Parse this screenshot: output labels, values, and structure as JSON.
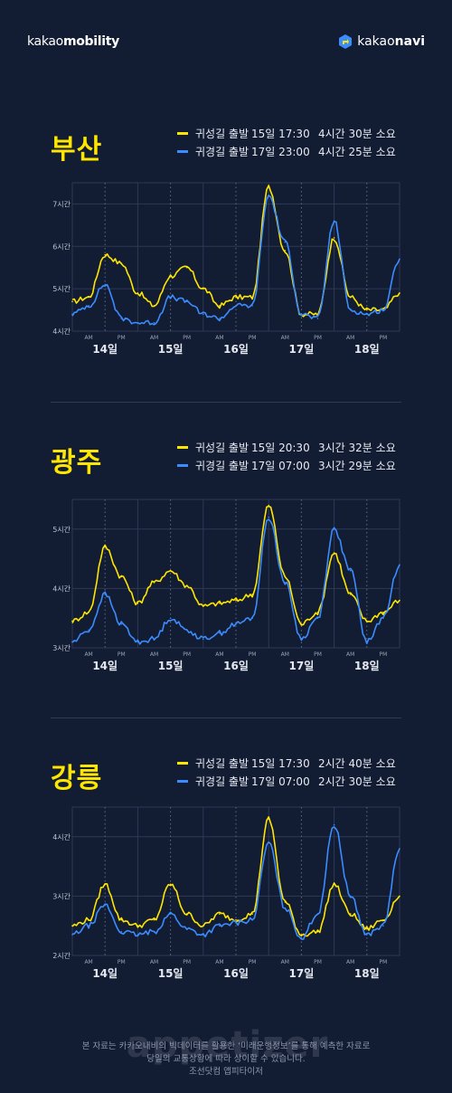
{
  "header": {
    "left_brand_light": "kakao",
    "left_brand_bold": "mobility",
    "right_brand_light": "kakao",
    "right_brand_bold": "navi"
  },
  "colors": {
    "background": "#121c33",
    "homecoming": "#ffe600",
    "return": "#3b8cff",
    "grid": "#2d3956"
  },
  "chart_data": [
    {
      "type": "line",
      "title": "부산",
      "categories_days": [
        "14일",
        "15일",
        "16일",
        "17일",
        "18일"
      ],
      "ampm_labels": [
        "AM",
        "PM"
      ],
      "y_ticks": [
        "4시간",
        "5시간",
        "6시간",
        "7시간"
      ],
      "ylim": [
        4,
        7.5
      ],
      "legend": [
        {
          "name": "귀성길 출발",
          "when": "15일  17:30",
          "duration": "4시간 30분 소요"
        },
        {
          "name": "귀경길 출발",
          "when": "17일  23:00",
          "duration": "4시간 25분 소요"
        }
      ],
      "x": [
        0,
        0.5,
        1,
        1.5,
        2,
        2.5,
        3,
        3.5,
        4,
        4.5,
        5,
        5.5,
        6,
        6.5,
        7,
        7.5,
        8,
        8.5,
        9,
        9.5,
        10
      ],
      "series": [
        {
          "name": "귀성길 출발",
          "values": [
            4.7,
            4.8,
            5.8,
            5.6,
            4.9,
            4.6,
            5.3,
            5.5,
            5.0,
            4.6,
            4.8,
            4.8,
            7.4,
            5.9,
            4.4,
            4.4,
            6.2,
            4.8,
            4.5,
            4.5,
            4.9
          ]
        },
        {
          "name": "귀경길 출발",
          "values": [
            4.4,
            4.6,
            5.1,
            4.3,
            4.2,
            4.2,
            4.8,
            4.7,
            4.4,
            4.3,
            4.6,
            4.6,
            7.2,
            6.1,
            4.4,
            4.3,
            6.6,
            4.5,
            4.4,
            4.5,
            5.7
          ]
        }
      ]
    },
    {
      "type": "line",
      "title": "광주",
      "categories_days": [
        "14일",
        "15일",
        "16일",
        "17일",
        "18일"
      ],
      "ampm_labels": [
        "AM",
        "PM"
      ],
      "y_ticks": [
        "3시간",
        "4시간",
        "5시간"
      ],
      "ylim": [
        3,
        5.5
      ],
      "legend": [
        {
          "name": "귀성길 출발",
          "when": "15일  20:30",
          "duration": "3시간 32분 소요"
        },
        {
          "name": "귀경길 출발",
          "when": "17일  07:00",
          "duration": "3시간 29분 소요"
        }
      ],
      "x": [
        0,
        0.5,
        1,
        1.5,
        2,
        2.5,
        3,
        3.5,
        4,
        4.5,
        5,
        5.5,
        6,
        6.5,
        7,
        7.5,
        8,
        8.5,
        9,
        9.5,
        10
      ],
      "series": [
        {
          "name": "귀성길 출발",
          "values": [
            3.45,
            3.6,
            4.7,
            4.2,
            3.75,
            4.1,
            4.3,
            4.05,
            3.7,
            3.75,
            3.8,
            3.9,
            5.4,
            4.2,
            3.4,
            3.6,
            4.6,
            3.9,
            3.45,
            3.6,
            3.8
          ]
        },
        {
          "name": "귀경길 출발",
          "values": [
            3.1,
            3.3,
            3.9,
            3.4,
            3.1,
            3.15,
            3.5,
            3.3,
            3.15,
            3.25,
            3.4,
            3.5,
            5.2,
            4.1,
            3.15,
            3.5,
            5.0,
            4.3,
            3.1,
            3.5,
            4.4
          ]
        }
      ]
    },
    {
      "type": "line",
      "title": "강릉",
      "categories_days": [
        "14일",
        "15일",
        "16일",
        "17일",
        "18일"
      ],
      "ampm_labels": [
        "AM",
        "PM"
      ],
      "y_ticks": [
        "2시간",
        "3시간",
        "4시간"
      ],
      "ylim": [
        2,
        4.5
      ],
      "legend": [
        {
          "name": "귀성길 출발",
          "when": "15일  17:30",
          "duration": "2시간 40분 소요"
        },
        {
          "name": "귀경길 출발",
          "when": "17일  07:00",
          "duration": "2시간 30분 소요"
        }
      ],
      "x": [
        0,
        0.5,
        1,
        1.5,
        2,
        2.5,
        3,
        3.5,
        4,
        4.5,
        5,
        5.5,
        6,
        6.5,
        7,
        7.5,
        8,
        8.5,
        9,
        9.5,
        10
      ],
      "series": [
        {
          "name": "귀성길 출발",
          "values": [
            2.5,
            2.6,
            3.2,
            2.6,
            2.5,
            2.6,
            3.2,
            2.7,
            2.5,
            2.7,
            2.6,
            2.7,
            4.3,
            2.9,
            2.35,
            2.4,
            3.2,
            2.7,
            2.45,
            2.6,
            3.0
          ]
        },
        {
          "name": "귀경길 출발",
          "values": [
            2.35,
            2.5,
            2.85,
            2.4,
            2.35,
            2.4,
            2.7,
            2.45,
            2.35,
            2.5,
            2.55,
            2.6,
            3.9,
            2.8,
            2.3,
            2.7,
            4.2,
            3.0,
            2.35,
            2.5,
            3.8
          ]
        }
      ]
    }
  ],
  "footer": {
    "line1": "본 자료는 카카오내비의 빅데이터를 활용한 ‘미래운행정보’를 통해 예측한 자료로",
    "line2": "당일의 교통상황에 따라 상이할 수 있습니다.",
    "credit": "조선닷컴 앱피타이저",
    "watermark": "appetizer"
  }
}
